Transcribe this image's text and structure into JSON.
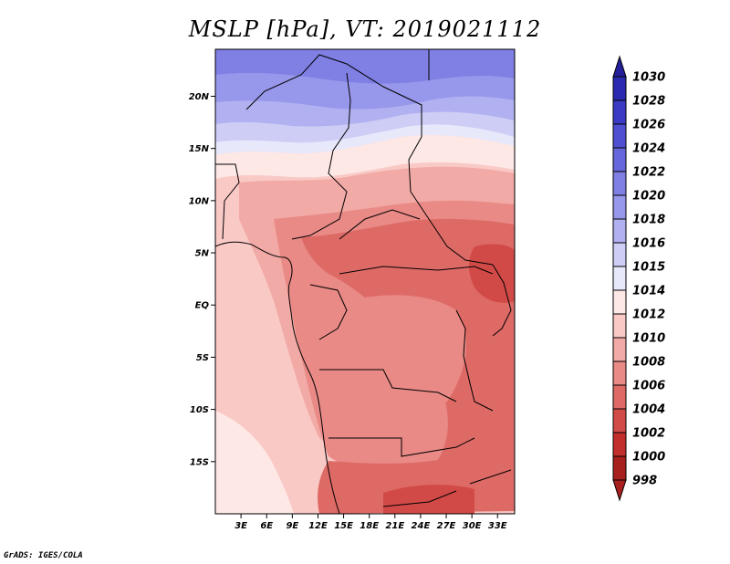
{
  "title": "MSLP [hPa], VT: 2019021112",
  "credit": "GrADS: IGES/COLA",
  "map": {
    "lat_labels": [
      "20N",
      "15N",
      "10N",
      "5N",
      "EQ",
      "5S",
      "10S",
      "15S"
    ],
    "lat_values": [
      20,
      15,
      10,
      5,
      0,
      -5,
      -10,
      -15
    ],
    "lon_labels": [
      "3E",
      "6E",
      "9E",
      "12E",
      "15E",
      "18E",
      "21E",
      "24E",
      "27E",
      "30E",
      "33E"
    ],
    "lon_values": [
      3,
      6,
      9,
      12,
      15,
      18,
      21,
      24,
      27,
      30,
      33
    ],
    "lon_range": [
      0,
      35
    ],
    "lat_range": [
      -20,
      24.5
    ]
  },
  "colorbar": {
    "levels": [
      "1030",
      "1028",
      "1026",
      "1024",
      "1022",
      "1020",
      "1018",
      "1016",
      "1015",
      "1014",
      "1012",
      "1010",
      "1008",
      "1006",
      "1004",
      "1002",
      "1000",
      "998"
    ],
    "colors": [
      "#24209a",
      "#2a2ab0",
      "#3a3ac4",
      "#4f4fd2",
      "#6767dc",
      "#7f7fe4",
      "#9797eb",
      "#b1b1f1",
      "#cdcdf6",
      "#e8e8fb",
      "#fde8e6",
      "#f9c9c6",
      "#f2aaa6",
      "#e98a86",
      "#de6a66",
      "#d24a47",
      "#c22e2c",
      "#a8201e"
    ]
  },
  "field_colors": {
    "h1022": "#7f7fe4",
    "h1020": "#9797eb",
    "h1018": "#b1b1f1",
    "h1016": "#cdcdf6",
    "h1015": "#e8e8fb",
    "l1014": "#fde8e6",
    "l1012": "#f9c9c6",
    "l1010": "#f2aaa6",
    "l1008": "#e98a86",
    "l1006": "#de6a66",
    "l1004": "#d24a47"
  }
}
